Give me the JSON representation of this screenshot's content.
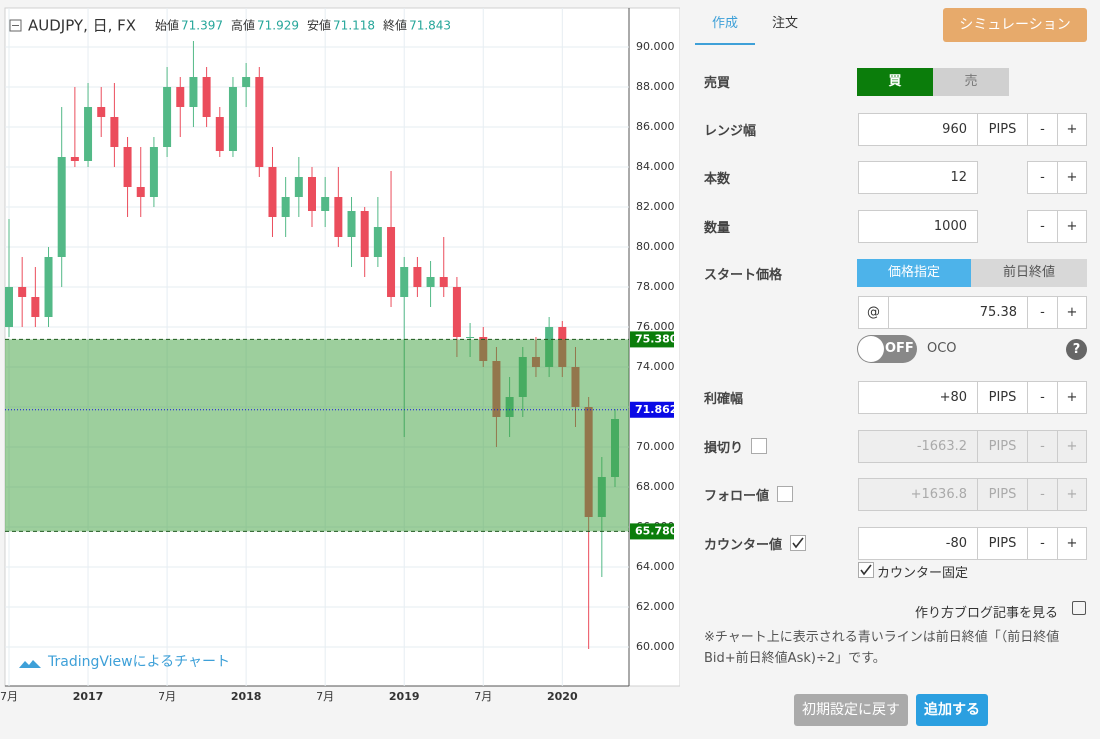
{
  "chart_data": {
    "type": "candlestick",
    "symbol": "AUDJPY, 日, FX",
    "ohlc_labels": [
      "始値",
      "高値",
      "安値",
      "終値"
    ],
    "ohlc_values": [
      71.397,
      71.929,
      71.118,
      71.843
    ],
    "watermark": "TradingViewによるチャート",
    "up_color": "#53b987",
    "down_color": "#eb4d5c",
    "x": [
      "2016-07",
      "2016-08",
      "2016-09",
      "2016-10",
      "2016-11",
      "2016-12",
      "2017-01",
      "2017-02",
      "2017-03",
      "2017-04",
      "2017-05",
      "2017-06",
      "2017-07",
      "2017-08",
      "2017-09",
      "2017-10",
      "2017-11",
      "2017-12",
      "2018-01",
      "2018-02",
      "2018-03",
      "2018-04",
      "2018-05",
      "2018-06",
      "2018-07",
      "2018-08",
      "2018-09",
      "2018-10",
      "2018-11",
      "2018-12",
      "2019-01",
      "2019-02",
      "2019-03",
      "2019-04",
      "2019-05",
      "2019-06",
      "2019-07",
      "2019-08",
      "2019-09",
      "2019-10",
      "2019-11",
      "2019-12",
      "2020-01",
      "2020-02",
      "2020-03",
      "2020-04",
      "2020-05"
    ],
    "open": [
      76,
      78,
      77.5,
      76.5,
      79.5,
      84.5,
      84.3,
      87,
      86.5,
      85,
      83,
      82.5,
      85,
      88,
      87,
      88.5,
      86.5,
      84.8,
      88,
      88.5,
      84,
      81.5,
      82.5,
      83.5,
      81.8,
      82.5,
      80.5,
      81.8,
      79.5,
      81,
      77.5,
      79,
      78,
      78.5,
      78,
      75.5,
      75.5,
      74.3,
      71.5,
      72.5,
      74.5,
      74,
      76,
      74,
      72,
      66.5,
      68.5
    ],
    "high": [
      81.4,
      79.5,
      79,
      80,
      87,
      88,
      88.2,
      88,
      88.2,
      85.5,
      85,
      85.5,
      89,
      88.5,
      90.3,
      89,
      87,
      88.5,
      89.2,
      89,
      85,
      83.5,
      84.5,
      84,
      83.5,
      84,
      82.5,
      82,
      82.5,
      83.8,
      79.5,
      79.5,
      79.3,
      80.5,
      78.5,
      76.2,
      76,
      75,
      73.5,
      75,
      75.5,
      76.5,
      76.3,
      75,
      72.5,
      69.5,
      71.9
    ],
    "low": [
      75.5,
      76,
      76,
      76,
      78,
      84,
      84,
      85.5,
      84,
      81.5,
      81.5,
      82,
      84.5,
      85.5,
      86,
      86,
      84.5,
      84.5,
      87,
      83.5,
      80.5,
      80.5,
      81.5,
      81,
      81,
      80,
      79,
      78.5,
      79,
      77,
      70.5,
      77.5,
      77,
      77.5,
      74.5,
      74.5,
      74,
      70,
      70.5,
      71.5,
      73.5,
      73.5,
      73.5,
      71,
      59.9,
      63.5,
      68
    ],
    "close": [
      78,
      77.5,
      76.5,
      79.5,
      84.5,
      84.3,
      87,
      86.5,
      85,
      83,
      82.5,
      85,
      88,
      87,
      88.5,
      86.5,
      84.8,
      88,
      88.5,
      84,
      81.5,
      82.5,
      83.5,
      81.8,
      82.5,
      80.5,
      81.8,
      79.5,
      81,
      77.5,
      79,
      78,
      78.5,
      78,
      75.5,
      75.5,
      74.3,
      71.5,
      72.5,
      74.5,
      74,
      76,
      74,
      72,
      66.5,
      68.5,
      71.4
    ],
    "xlim": [
      "2016-07",
      "2020-05"
    ],
    "xticks": [
      {
        "value": "2016-07",
        "label": "7月"
      },
      {
        "value": "2017-01",
        "label": "2017"
      },
      {
        "value": "2017-07",
        "label": "7月"
      },
      {
        "value": "2018-01",
        "label": "2018"
      },
      {
        "value": "2018-07",
        "label": "7月"
      },
      {
        "value": "2019-01",
        "label": "2019"
      },
      {
        "value": "2019-07",
        "label": "7月"
      },
      {
        "value": "2020-01",
        "label": "2020"
      }
    ],
    "ylim": [
      58.05,
      91.95
    ],
    "yticks": [
      {
        "value": 60,
        "label": "60.000"
      },
      {
        "value": 62,
        "label": "62.000"
      },
      {
        "value": 64,
        "label": "64.000"
      },
      {
        "value": 66,
        "label": "66.000"
      },
      {
        "value": 68,
        "label": "68.000"
      },
      {
        "value": 70,
        "label": "70.000"
      },
      {
        "value": 72,
        "label": "72.000"
      },
      {
        "value": 74,
        "label": "74.000"
      },
      {
        "value": 76,
        "label": "76.000"
      },
      {
        "value": 78,
        "label": "78.000"
      },
      {
        "value": 80,
        "label": "80.000"
      },
      {
        "value": 82,
        "label": "82.000"
      },
      {
        "value": 84,
        "label": "84.000"
      },
      {
        "value": 86,
        "label": "86.000"
      },
      {
        "value": 88,
        "label": "88.000"
      },
      {
        "value": 90,
        "label": "90.000"
      }
    ],
    "grid": true,
    "range_upper": {
      "value": 75.38,
      "label": "75.380"
    },
    "range_lower": {
      "value": 65.78,
      "label": "65.780"
    },
    "prev_close": 71.862
  },
  "form": {
    "tabs": [
      "作成",
      "注文"
    ],
    "simulate": "シミュレーション",
    "side": {
      "label": "売買",
      "buy": "買",
      "sell": "売"
    },
    "minus": "-",
    "plus": "+",
    "rows": [
      {
        "label": "レンジ幅",
        "value": "960",
        "unit": "PIPS"
      },
      {
        "label": "本数",
        "value": "12"
      },
      {
        "label": "数量",
        "value": "1000"
      }
    ],
    "start": {
      "label": "スタート価格",
      "options": [
        "価格指定",
        "前日終値"
      ],
      "at": "@",
      "value": "75.38"
    },
    "oco": {
      "toggle": "OFF",
      "label": "OCO",
      "help": "?"
    },
    "rows2": [
      {
        "label": "利確幅",
        "value": "+80",
        "unit": "PIPS"
      },
      {
        "label": "損切り",
        "checkbox": false,
        "disabled": true,
        "value": "-1663.2",
        "unit": "PIPS"
      },
      {
        "label": "フォロー値",
        "checkbox": false,
        "disabled": true,
        "value": "+1636.8",
        "unit": "PIPS"
      },
      {
        "label": "カウンター値",
        "checkbox": true,
        "value": "-80",
        "unit": "PIPS"
      }
    ],
    "counter_fixed": {
      "label": "カウンター固定",
      "checked": true
    },
    "blog": "作り方ブログ記事を見る",
    "note": "※チャート上に表示される青いラインは前日終値「（前日終値Bid+前日終値Ask)÷2」です。",
    "reset": "初期設定に戻す",
    "add": "追加する"
  }
}
